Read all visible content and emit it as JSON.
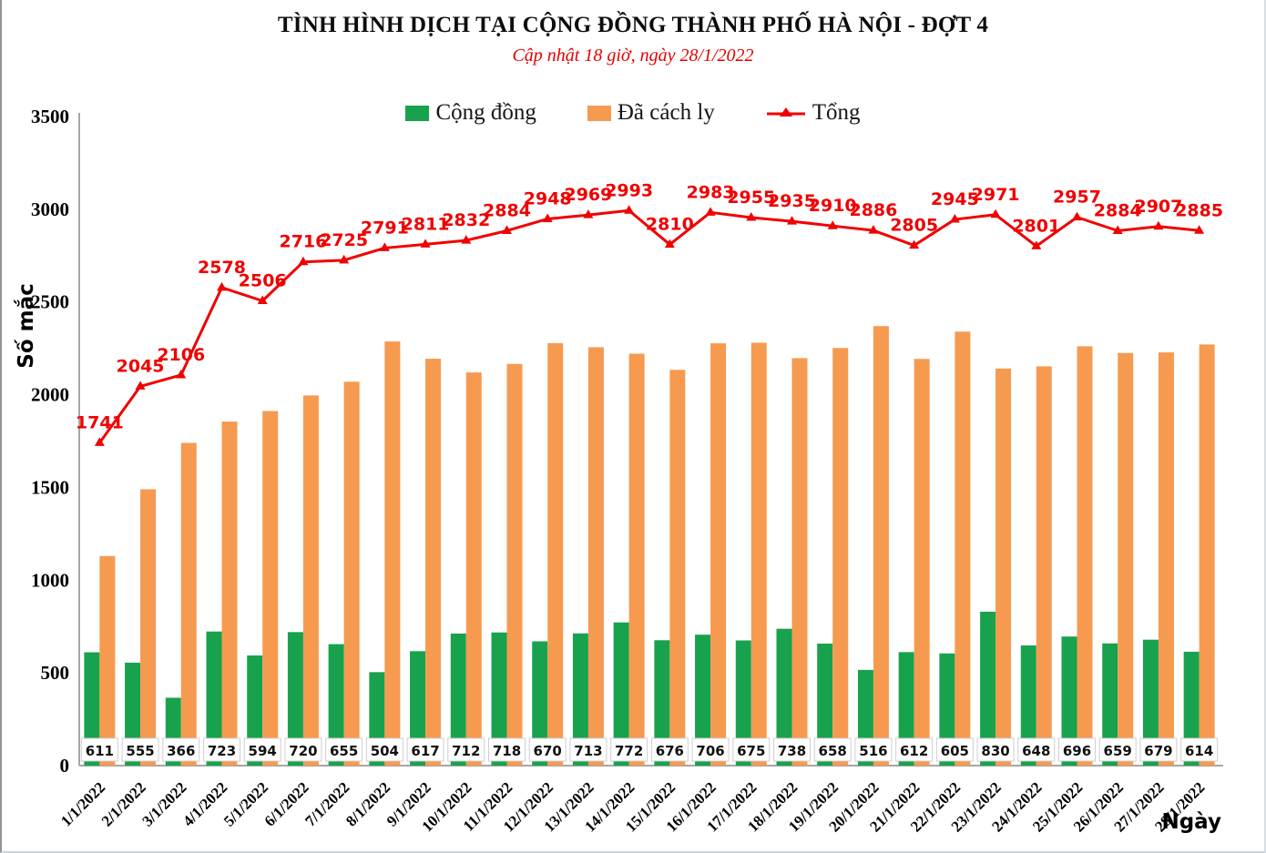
{
  "header": {
    "title": "TÌNH HÌNH DỊCH TẠI CỘNG ĐỒNG THÀNH PHỐ HÀ NỘI - ĐỢT 4",
    "subtitle": "Cập nhật 18 giờ, ngày  28/1/2022"
  },
  "legend": {
    "items": [
      {
        "label": "Cộng đồng",
        "color": "#18a24e",
        "marker": "square"
      },
      {
        "label": "Đã cách ly",
        "color": "#f69a50",
        "marker": "square"
      },
      {
        "label": "Tổng",
        "color": "#f00000",
        "marker": "line-triangle"
      }
    ]
  },
  "axes": {
    "y_label": "Số mắc",
    "x_label": "Ngày",
    "y_ticks": [
      "0",
      "500",
      "1000",
      "1500",
      "2000",
      "2500",
      "3000",
      "3500"
    ]
  },
  "chart_data": {
    "type": "bar",
    "title": "TÌNH HÌNH DỊCH TẠI CỘNG ĐỒNG THÀNH PHỐ HÀ NỘI - ĐỢT 4",
    "subtitle": "Cập nhật 18 giờ, ngày  28/1/2022",
    "xlabel": "Ngày",
    "ylabel": "Số mắc",
    "ylim": [
      0,
      3500
    ],
    "y_tick_step": 500,
    "grid": false,
    "legend_position": "top",
    "categories": [
      "1/1/2022",
      "2/1/2022",
      "3/1/2022",
      "4/1/2022",
      "5/1/2022",
      "6/1/2022",
      "7/1/2022",
      "8/1/2022",
      "9/1/2022",
      "10/1/2022",
      "11/1/2022",
      "12/1/2022",
      "13/1/2022",
      "14/1/2022",
      "15/1/2022",
      "16/1/2022",
      "17/1/2022",
      "18/1/2022",
      "19/1/2022",
      "20/1/2022",
      "21/1/2022",
      "22/1/2022",
      "23/1/2022",
      "24/1/2022",
      "25/1/2022",
      "26/1/2022",
      "27/1/2022",
      "28/1/2022"
    ],
    "series": [
      {
        "name": "Cộng đồng",
        "type": "bar",
        "color": "#18a24e",
        "labels_visible": true,
        "values": [
          611,
          555,
          366,
          723,
          594,
          720,
          655,
          504,
          617,
          712,
          718,
          670,
          713,
          772,
          676,
          706,
          675,
          738,
          658,
          516,
          612,
          605,
          830,
          648,
          696,
          659,
          679,
          614
        ]
      },
      {
        "name": "Đã cách ly",
        "type": "bar",
        "color": "#f69a50",
        "labels_visible": false,
        "values": [
          1130,
          1490,
          1740,
          1855,
          1912,
          1996,
          2070,
          2287,
          2194,
          2120,
          2166,
          2278,
          2256,
          2221,
          2134,
          2277,
          2280,
          2197,
          2252,
          2370,
          2193,
          2340,
          2141,
          2153,
          2261,
          2225,
          2228,
          2271
        ]
      },
      {
        "name": "Tổng",
        "type": "line",
        "color": "#f00000",
        "labels_visible": true,
        "values": [
          1741,
          2045,
          2106,
          2578,
          2506,
          2716,
          2725,
          2791,
          2811,
          2832,
          2884,
          2948,
          2969,
          2993,
          2810,
          2983,
          2955,
          2935,
          2910,
          2886,
          2805,
          2945,
          2971,
          2801,
          2957,
          2884,
          2907,
          2885
        ]
      }
    ]
  }
}
